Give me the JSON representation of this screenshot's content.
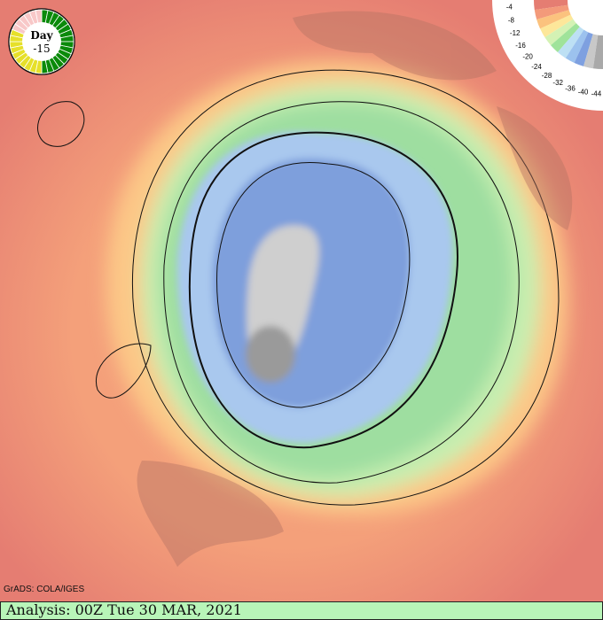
{
  "dial": {
    "line1": "Day",
    "line2": "-15",
    "colors": {
      "elapsed": "#0a8a0a",
      "mid": "#e6e02a",
      "early": "#f8c8c8"
    }
  },
  "legend": {
    "labels": [
      "-4",
      "-8",
      "-12",
      "-16",
      "-20",
      "-24",
      "-28",
      "-32",
      "-36",
      "-40",
      "-44"
    ],
    "colors": [
      "#e57d72",
      "#f39a7a",
      "#fbc27e",
      "#fde79a",
      "#d4f2b4",
      "#9fe39a",
      "#bde0f4",
      "#9cc2ee",
      "#7ea0e0",
      "#c8c8c8",
      "#a9a9a9"
    ]
  },
  "credit": "GrADS: COLA/IGES",
  "footer": "Analysis: 00Z Tue 30 MAR, 2021"
}
